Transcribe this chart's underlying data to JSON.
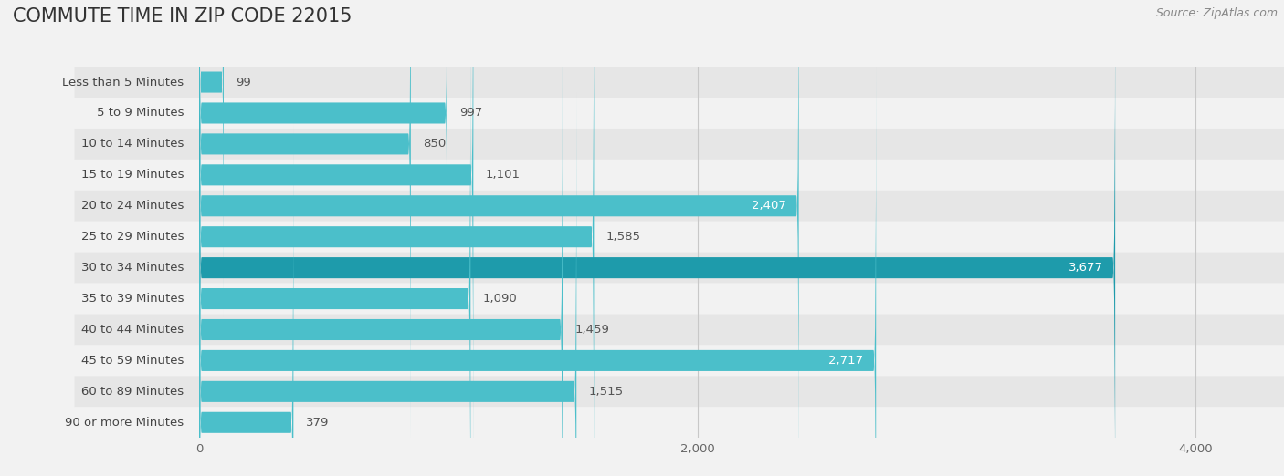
{
  "title": "COMMUTE TIME IN ZIP CODE 22015",
  "source": "Source: ZipAtlas.com",
  "categories": [
    "Less than 5 Minutes",
    "5 to 9 Minutes",
    "10 to 14 Minutes",
    "15 to 19 Minutes",
    "20 to 24 Minutes",
    "25 to 29 Minutes",
    "30 to 34 Minutes",
    "35 to 39 Minutes",
    "40 to 44 Minutes",
    "45 to 59 Minutes",
    "60 to 89 Minutes",
    "90 or more Minutes"
  ],
  "values": [
    99,
    997,
    850,
    1101,
    2407,
    1585,
    3677,
    1090,
    1459,
    2717,
    1515,
    379
  ],
  "bar_color_light": "#4BBFCA",
  "bar_color_dark": "#1E9BAB",
  "highlight_indices": [
    6
  ],
  "bg_color": "#f2f2f2",
  "row_bg_light": "#f2f2f2",
  "row_bg_dark": "#e6e6e6",
  "xlim": [
    0,
    4200
  ],
  "xticks": [
    0,
    2000,
    4000
  ],
  "title_fontsize": 15,
  "label_fontsize": 9.5,
  "value_fontsize": 9.5,
  "source_fontsize": 9
}
